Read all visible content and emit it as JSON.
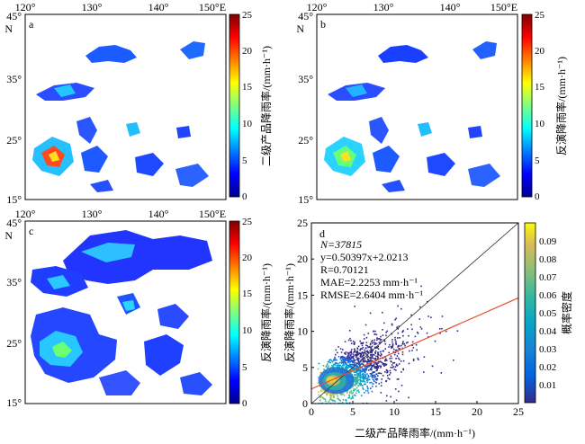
{
  "chart_data": [
    {
      "panel": "a",
      "type": "heatmap",
      "x_ticks": [
        "120°",
        "130°",
        "140°",
        "150°E"
      ],
      "y_ticks": [
        "45°\nN",
        "35°",
        "25°",
        "15°"
      ],
      "colorbar": {
        "ticks": [
          "0",
          "5",
          "10",
          "15",
          "20",
          "25"
        ],
        "label": "二级产品降雨率/(mm·h⁻¹)",
        "range": [
          0,
          25
        ]
      },
      "lon_range": [
        120,
        150
      ],
      "lat_range": [
        15,
        45
      ]
    },
    {
      "panel": "b",
      "type": "heatmap",
      "x_ticks": [
        "120°",
        "130°",
        "140°",
        "150°E"
      ],
      "y_ticks": [
        "45°\nN",
        "35°",
        "25°",
        "15°"
      ],
      "colorbar": {
        "ticks": [
          "0",
          "5",
          "10",
          "15",
          "20",
          "25"
        ],
        "label": "反演降雨率/(mm·h⁻¹)",
        "range": [
          0,
          25
        ]
      },
      "lon_range": [
        120,
        150
      ],
      "lat_range": [
        15,
        45
      ]
    },
    {
      "panel": "c",
      "type": "heatmap",
      "x_ticks": [
        "120°",
        "130°",
        "140°",
        "150°E"
      ],
      "y_ticks": [
        "45°\nN",
        "35°",
        "25°",
        "15°"
      ],
      "colorbar": {
        "ticks": [
          "0",
          "5",
          "10",
          "15",
          "20",
          "25"
        ],
        "label": "反演降雨率/(mm·h⁻¹)",
        "range": [
          0,
          25
        ]
      },
      "lon_range": [
        120,
        150
      ],
      "lat_range": [
        15,
        45
      ]
    },
    {
      "panel": "d",
      "type": "scatter",
      "xlabel": "二级产品降雨率/(mm·h⁻¹)",
      "ylabel": "反演降雨率/(mm·h⁻¹)",
      "xlim": [
        0,
        25
      ],
      "ylim": [
        0,
        25
      ],
      "x_ticks": [
        0,
        5,
        10,
        15,
        20,
        25
      ],
      "y_ticks": [
        0,
        5,
        10,
        15,
        20,
        25
      ],
      "stats": {
        "n": "N=37815",
        "fit": "y=0.50397x+2.0213",
        "r": "R=0.70121",
        "mae": "MAE=2.2253 mm·h⁻¹",
        "rmse": "RMSE=2.6404 mm·h⁻¹"
      },
      "fit_line": {
        "slope": 0.50397,
        "intercept": 2.0213,
        "color": "#e8502a"
      },
      "reference_line": {
        "slope": 1,
        "intercept": 0,
        "color": "#333333"
      },
      "density_colorbar": {
        "label": "概率密度",
        "ticks": [
          "0.01",
          "0.02",
          "0.03",
          "0.04",
          "0.05",
          "0.06",
          "0.07",
          "0.08",
          "0.09"
        ],
        "range": [
          0,
          0.1
        ]
      }
    }
  ]
}
